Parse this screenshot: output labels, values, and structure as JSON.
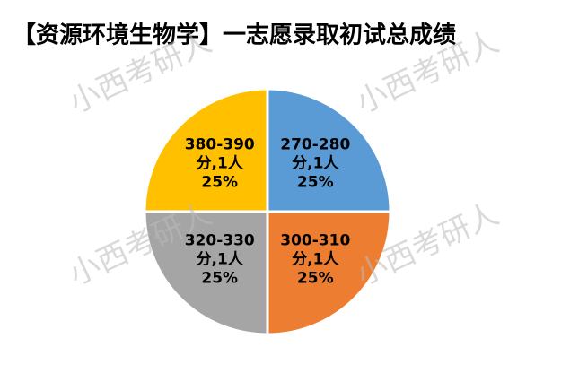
{
  "chart_data": {
    "type": "pie",
    "title": "【资源环境生物学】一志愿录取初试总成绩",
    "categories": [
      "270-280",
      "300-310",
      "320-330",
      "380-390"
    ],
    "values": [
      1,
      1,
      1,
      1
    ],
    "value_labels": [
      "分,1人",
      "分,1人",
      "分,1人",
      "分,1人"
    ],
    "percents": [
      25,
      25,
      25,
      25
    ],
    "percent_labels": [
      "25%",
      "25%",
      "25%",
      "25%"
    ],
    "colors": [
      "#5b9bd5",
      "#ed7d31",
      "#a5a5a5",
      "#ffc000"
    ],
    "watermarks": [
      "小西考研人",
      "小西考研人",
      "小西考研人",
      "小西考研人"
    ]
  }
}
